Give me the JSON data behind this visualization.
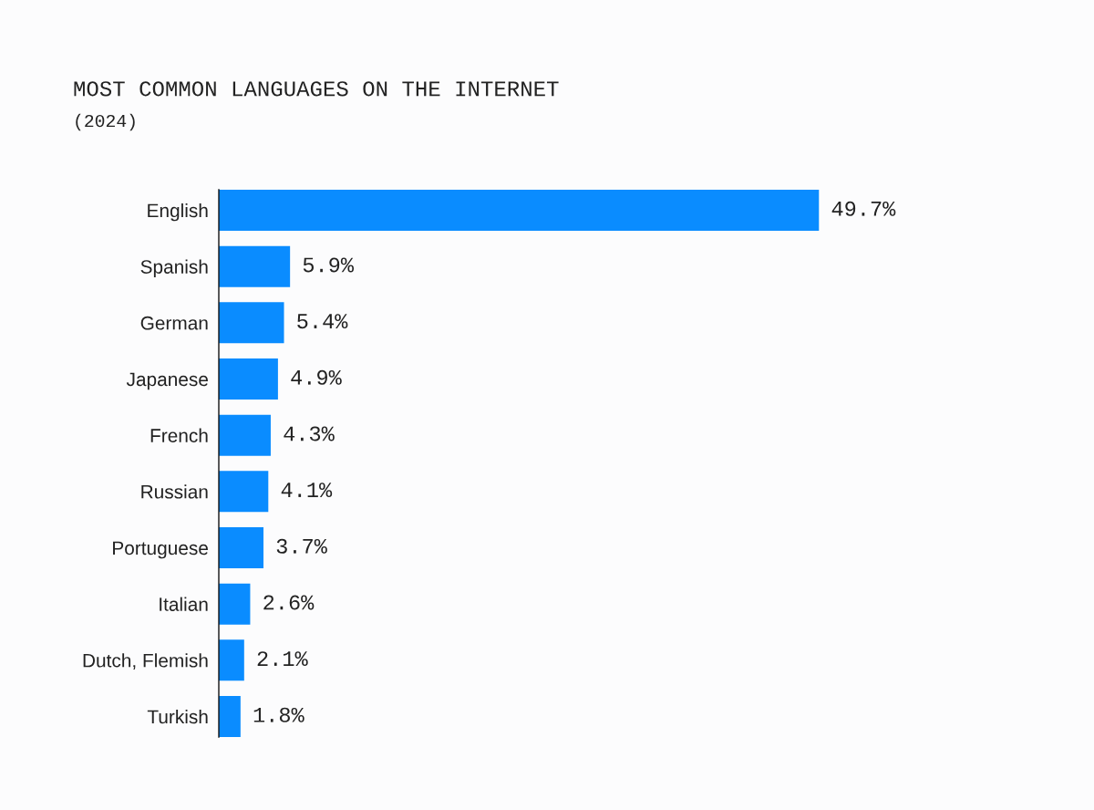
{
  "chart_data": {
    "type": "bar",
    "orientation": "horizontal",
    "title": "MOST COMMON LANGUAGES ON THE INTERNET",
    "subtitle": "(2024)",
    "categories": [
      "English",
      "Spanish",
      "German",
      "Japanese",
      "French",
      "Russian",
      "Portuguese",
      "Italian",
      "Dutch, Flemish",
      "Turkish"
    ],
    "values": [
      49.7,
      5.9,
      5.4,
      4.9,
      4.3,
      4.1,
      3.7,
      2.6,
      2.1,
      1.8
    ],
    "value_labels": [
      "49.7%",
      "5.9%",
      "5.4%",
      "4.9%",
      "4.3%",
      "4.1%",
      "3.7%",
      "2.6%",
      "2.1%",
      "1.8%"
    ],
    "color": "#0a8cff",
    "tick_labels": "y"
  }
}
